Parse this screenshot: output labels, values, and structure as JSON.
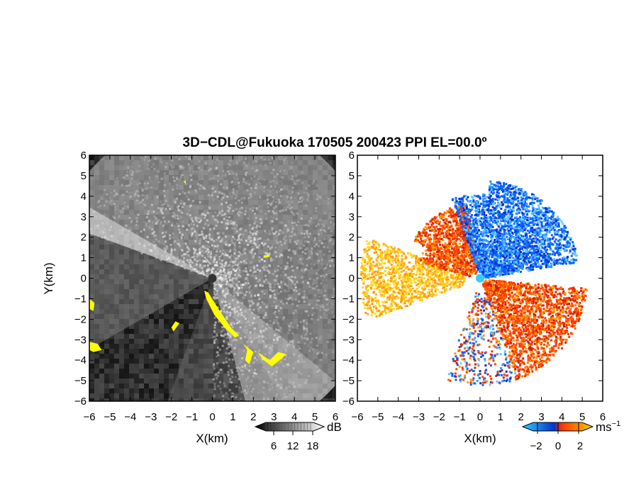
{
  "chart_data": [
    {
      "type": "heatmap",
      "panel": "left",
      "title": "3D−CDL@Fukuoka 170505 200423 PPI EL=00.0º",
      "xlabel": "X(km)",
      "ylabel": "Y(km)",
      "xlim": [
        -6,
        6
      ],
      "ylim": [
        -6,
        6
      ],
      "xticks": [
        "−6",
        "−5",
        "−4",
        "−3",
        "−2",
        "−1",
        "0",
        "1",
        "2",
        "3",
        "4",
        "5",
        "6"
      ],
      "yticks": [
        "6",
        "5",
        "4",
        "3",
        "2",
        "1",
        "0",
        "−1",
        "−2",
        "−3",
        "−4",
        "−5",
        "−6"
      ],
      "colorbar": {
        "unit": "dB",
        "ticks": [
          "6",
          "12",
          "18"
        ],
        "colors": [
          "#000000",
          "#ffffff"
        ],
        "min": 0,
        "max": 24
      },
      "highlight_color": "#ffff00"
    },
    {
      "type": "heatmap",
      "panel": "right",
      "xlabel": "X(km)",
      "xlim": [
        -6,
        6
      ],
      "ylim": [
        -6,
        6
      ],
      "xticks": [
        "−6",
        "−5",
        "−4",
        "−3",
        "−2",
        "−1",
        "0",
        "1",
        "2",
        "3",
        "4",
        "5",
        "6"
      ],
      "yticks": [
        "6",
        "5",
        "4",
        "3",
        "2",
        "1",
        "0",
        "−1",
        "−2",
        "−3",
        "−4",
        "−5",
        "−6"
      ],
      "colorbar": {
        "unit": "ms",
        "unit_sup": "−1",
        "ticks": [
          "−2",
          "0",
          "2"
        ],
        "min": -3,
        "max": 3,
        "colors": [
          "#33ccff",
          "#0033cc",
          "#ff3300",
          "#ffcc00"
        ]
      }
    }
  ]
}
